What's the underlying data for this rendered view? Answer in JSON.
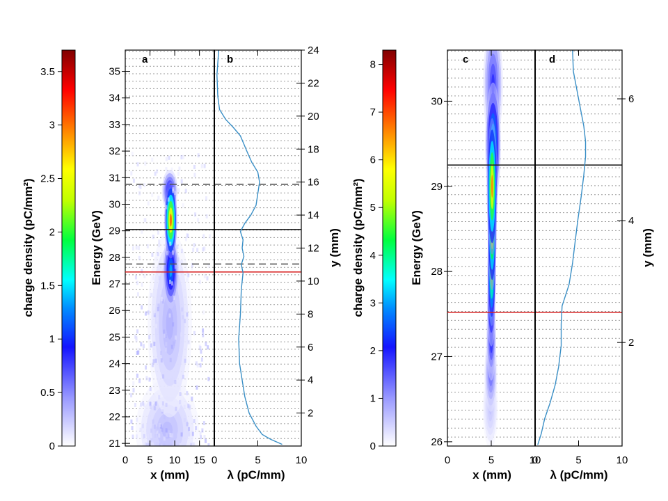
{
  "chart_data": [
    {
      "type": "colorbar",
      "panel": "left-colorbar",
      "label": "charge density (pC/mm²)",
      "range": [
        0,
        3.7
      ],
      "ticks": [
        0,
        0.5,
        1,
        1.5,
        2,
        2.5,
        3,
        3.5
      ],
      "tick_labels": [
        "0",
        "0.5",
        "1",
        "1.5",
        "2",
        "2.5",
        "3",
        "3.5"
      ]
    },
    {
      "type": "heatmap",
      "panel": "a",
      "panel_label": "a",
      "xlabel": "x (mm)",
      "ylabel": "Energy (GeV)",
      "xlim": [
        0,
        18
      ],
      "xticks": [
        0,
        5,
        10,
        15
      ],
      "xtick_labels": [
        "0",
        "5",
        "10",
        "15"
      ],
      "ylim": [
        20.9,
        35.8
      ],
      "yticks": [
        21,
        22,
        23,
        24,
        25,
        26,
        27,
        28,
        29,
        30,
        31,
        32,
        33,
        34,
        35
      ],
      "ytick_labels": [
        "21",
        "22",
        "23",
        "24",
        "25",
        "26",
        "27",
        "28",
        "29",
        "30",
        "31",
        "32",
        "33",
        "34",
        "35"
      ],
      "grid": "dotted horizontal",
      "hlines": [
        {
          "y": 30.75,
          "style": "dashed",
          "color": "#555555"
        },
        {
          "y": 29.05,
          "style": "solid",
          "color": "#222222"
        },
        {
          "y": 27.75,
          "style": "dashed",
          "color": "#555555"
        },
        {
          "y": 27.45,
          "style": "solid",
          "color": "#d62020"
        }
      ],
      "blobs": [
        {
          "x": 9.2,
          "e": 29.4,
          "sx": 0.8,
          "se": 0.9,
          "value": 3.6
        },
        {
          "x": 9.2,
          "e": 27.5,
          "sx": 1.0,
          "se": 0.9,
          "value": 1.6
        },
        {
          "x": 9.0,
          "e": 30.5,
          "sx": 1.0,
          "se": 0.5,
          "value": 1.3
        },
        {
          "x": 9.0,
          "e": 25.5,
          "sx": 2.8,
          "se": 2.2,
          "value": 0.4
        },
        {
          "x": 8.5,
          "e": 21.5,
          "sx": 4.0,
          "se": 1.2,
          "value": 0.35
        }
      ]
    },
    {
      "type": "line",
      "panel": "b",
      "panel_label": "b",
      "xlabel": "λ (pC/mm)",
      "ylabel": "y (mm)",
      "xlim": [
        0,
        10
      ],
      "xticks": [
        0,
        5,
        10
      ],
      "xtick_labels": [
        "0",
        "5",
        "10"
      ],
      "ylim": [
        0,
        24
      ],
      "yticks": [
        2,
        4,
        6,
        8,
        10,
        12,
        14,
        16,
        18,
        20,
        22,
        24
      ],
      "ytick_labels": [
        "2",
        "4",
        "6",
        "8",
        "10",
        "12",
        "14",
        "16",
        "18",
        "20",
        "22",
        "24"
      ],
      "series": [
        {
          "name": "lambda",
          "color": "#3a8fc6",
          "points": [
            [
              7.8,
              0.1
            ],
            [
              6.5,
              0.4
            ],
            [
              5.5,
              0.7
            ],
            [
              4.8,
              1.2
            ],
            [
              4.0,
              2.0
            ],
            [
              3.5,
              3.0
            ],
            [
              3.2,
              4.0
            ],
            [
              2.9,
              5.0
            ],
            [
              2.8,
              6.5
            ],
            [
              3.0,
              8.0
            ],
            [
              3.1,
              9.5
            ],
            [
              3.3,
              10.5
            ],
            [
              3.1,
              11.0
            ],
            [
              3.4,
              11.5
            ],
            [
              3.2,
              12.0
            ],
            [
              3.3,
              12.5
            ],
            [
              3.0,
              13.0
            ],
            [
              3.5,
              13.5
            ],
            [
              4.2,
              14.0
            ],
            [
              4.8,
              14.6
            ],
            [
              5.0,
              15.3
            ],
            [
              5.2,
              16.0
            ],
            [
              5.0,
              16.6
            ],
            [
              4.3,
              17.2
            ],
            [
              3.8,
              17.8
            ],
            [
              3.4,
              18.3
            ],
            [
              3.0,
              18.8
            ],
            [
              2.2,
              19.3
            ],
            [
              1.3,
              19.8
            ],
            [
              0.6,
              20.4
            ],
            [
              0.4,
              21.2
            ],
            [
              0.3,
              22.5
            ],
            [
              0.5,
              24.0
            ]
          ]
        }
      ]
    },
    {
      "type": "colorbar",
      "panel": "right-colorbar",
      "label": "charge density (pC/mm²)",
      "range": [
        0,
        8.3
      ],
      "ticks": [
        0,
        1,
        2,
        3,
        4,
        5,
        6,
        7,
        8
      ],
      "tick_labels": [
        "0",
        "1",
        "2",
        "3",
        "4",
        "5",
        "6",
        "7",
        "8"
      ]
    },
    {
      "type": "heatmap",
      "panel": "c",
      "panel_label": "c",
      "xlabel": "x (mm)",
      "ylabel": "Energy (GeV)",
      "xlim": [
        0,
        10
      ],
      "xticks": [
        0,
        5,
        10
      ],
      "xtick_labels": [
        "0",
        "5",
        "10"
      ],
      "ylim": [
        25.95,
        30.6
      ],
      "yticks": [
        26,
        27,
        28,
        29,
        30
      ],
      "ytick_labels": [
        "26",
        "27",
        "28",
        "29",
        "30"
      ],
      "grid": "dotted horizontal",
      "hlines": [
        {
          "y": 29.25,
          "style": "solid",
          "color": "#222222"
        },
        {
          "y": 27.52,
          "style": "solid",
          "color": "#d62020"
        }
      ],
      "blobs": [
        {
          "x": 5.2,
          "e": 30.2,
          "sx": 0.7,
          "se": 0.45,
          "value": 2.2
        },
        {
          "x": 5.2,
          "e": 29.5,
          "sx": 0.55,
          "se": 0.45,
          "value": 4.5
        },
        {
          "x": 5.1,
          "e": 29.0,
          "sx": 0.38,
          "se": 0.5,
          "value": 7.8
        },
        {
          "x": 5.1,
          "e": 28.5,
          "sx": 0.32,
          "se": 0.45,
          "value": 7.6
        },
        {
          "x": 5.05,
          "e": 28.0,
          "sx": 0.3,
          "se": 0.4,
          "value": 6.6
        },
        {
          "x": 5.0,
          "e": 27.6,
          "sx": 0.3,
          "se": 0.3,
          "value": 4.2
        },
        {
          "x": 5.0,
          "e": 27.2,
          "sx": 0.35,
          "se": 0.3,
          "value": 2.6
        },
        {
          "x": 4.95,
          "e": 26.8,
          "sx": 0.45,
          "se": 0.28,
          "value": 1.8
        },
        {
          "x": 4.9,
          "e": 26.4,
          "sx": 0.55,
          "se": 0.3,
          "value": 0.7
        }
      ]
    },
    {
      "type": "line",
      "panel": "d",
      "panel_label": "d",
      "xlabel": "λ (pC/mm)",
      "ylabel": "y (mm)",
      "xlim": [
        0,
        10
      ],
      "xticks": [
        0,
        5,
        10
      ],
      "xtick_labels": [
        "0",
        "5",
        "10"
      ],
      "ylim": [
        0.3,
        6.8
      ],
      "yticks": [
        2,
        4,
        6
      ],
      "ytick_labels": [
        "2",
        "4",
        "6"
      ],
      "series": [
        {
          "name": "lambda",
          "color": "#3a8fc6",
          "points": [
            [
              0.3,
              0.32
            ],
            [
              0.7,
              0.5
            ],
            [
              1.1,
              0.75
            ],
            [
              1.7,
              1.0
            ],
            [
              2.3,
              1.3
            ],
            [
              2.7,
              1.6
            ],
            [
              3.0,
              1.95
            ],
            [
              3.0,
              2.3
            ],
            [
              3.1,
              2.6
            ],
            [
              3.9,
              2.95
            ],
            [
              4.3,
              3.3
            ],
            [
              4.6,
              3.65
            ],
            [
              4.9,
              4.0
            ],
            [
              5.3,
              4.4
            ],
            [
              5.6,
              4.75
            ],
            [
              5.8,
              5.05
            ],
            [
              5.8,
              5.3
            ],
            [
              5.6,
              5.55
            ],
            [
              5.2,
              5.85
            ],
            [
              4.8,
              6.15
            ],
            [
              4.4,
              6.45
            ],
            [
              4.3,
              6.8
            ]
          ]
        }
      ]
    }
  ]
}
